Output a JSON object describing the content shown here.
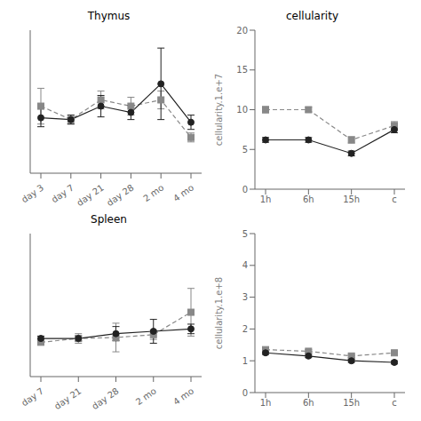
{
  "chart_data": [
    {
      "type": "line",
      "title": "Thymus",
      "categories": [
        "day 3",
        "day 7",
        "day 21",
        "day 28",
        "2 mo",
        "4 mo"
      ],
      "series": [
        {
          "color": "#888888",
          "marker": "square",
          "line_style": "dashed",
          "values": [
            0.075,
            0.06,
            0.082,
            0.075,
            0.082,
            0.04
          ],
          "errors": [
            0.02,
            0.005,
            0.01,
            0.01,
            0.01,
            0.005
          ]
        },
        {
          "color": "#222222",
          "marker": "circle",
          "line_style": "solid",
          "values": [
            0.062,
            0.06,
            0.075,
            0.068,
            0.1,
            0.057
          ],
          "errors": [
            0.01,
            0.005,
            0.012,
            0.008,
            0.04,
            0.008
          ]
        }
      ],
      "ylim": [
        0,
        0.16
      ],
      "tick_labels": "x"
    },
    {
      "type": "line",
      "title": "cellularity",
      "categories": [
        "1h",
        "6h",
        "15h",
        "c"
      ],
      "series": [
        {
          "color": "#888888",
          "marker": "square",
          "line_style": "dashed",
          "values": [
            10.0,
            10.0,
            6.2,
            8.0
          ],
          "errors": [
            0.4,
            0.3,
            0.4,
            0.5
          ]
        },
        {
          "color": "#222222",
          "marker": "circle",
          "line_style": "solid",
          "values": [
            6.2,
            6.2,
            4.5,
            7.5
          ],
          "errors": [
            0.3,
            0.3,
            0.3,
            0.4
          ]
        }
      ],
      "ylim": [
        0,
        20
      ],
      "yticks": [
        0,
        5,
        10,
        15,
        20
      ],
      "y_label": "cellularity.1.e+7"
    },
    {
      "type": "line",
      "title": "Spleen",
      "categories": [
        "day 7",
        "day 21",
        "day 28",
        "2 mo",
        "4 mo"
      ],
      "series": [
        {
          "color": "#888888",
          "marker": "square",
          "line_style": "dashed",
          "values": [
            0.072,
            0.08,
            0.082,
            0.088,
            0.135
          ],
          "errors": [
            0.005,
            0.01,
            0.03,
            0.01,
            0.05
          ]
        },
        {
          "color": "#222222",
          "marker": "circle",
          "line_style": "solid",
          "values": [
            0.08,
            0.08,
            0.09,
            0.095,
            0.1
          ],
          "errors": [
            0.005,
            0.005,
            0.015,
            0.025,
            0.01
          ]
        }
      ],
      "ylim": [
        0,
        0.3
      ],
      "tick_labels": "x"
    },
    {
      "type": "line",
      "categories": [
        "1h",
        "6h",
        "15h",
        "c"
      ],
      "series": [
        {
          "color": "#888888",
          "marker": "square",
          "line_style": "dashed",
          "values": [
            1.35,
            1.3,
            1.15,
            1.25
          ],
          "errors": [
            0.05,
            0.05,
            0.05,
            0.05
          ]
        },
        {
          "color": "#222222",
          "marker": "circle",
          "line_style": "solid",
          "values": [
            1.25,
            1.15,
            1.0,
            0.95
          ],
          "errors": [
            0.05,
            0.05,
            0.05,
            0.05
          ]
        }
      ],
      "ylim": [
        0,
        5
      ],
      "yticks": [
        0,
        1,
        2,
        3,
        4,
        5
      ],
      "y_label": "cellularity.1.e+8"
    }
  ]
}
